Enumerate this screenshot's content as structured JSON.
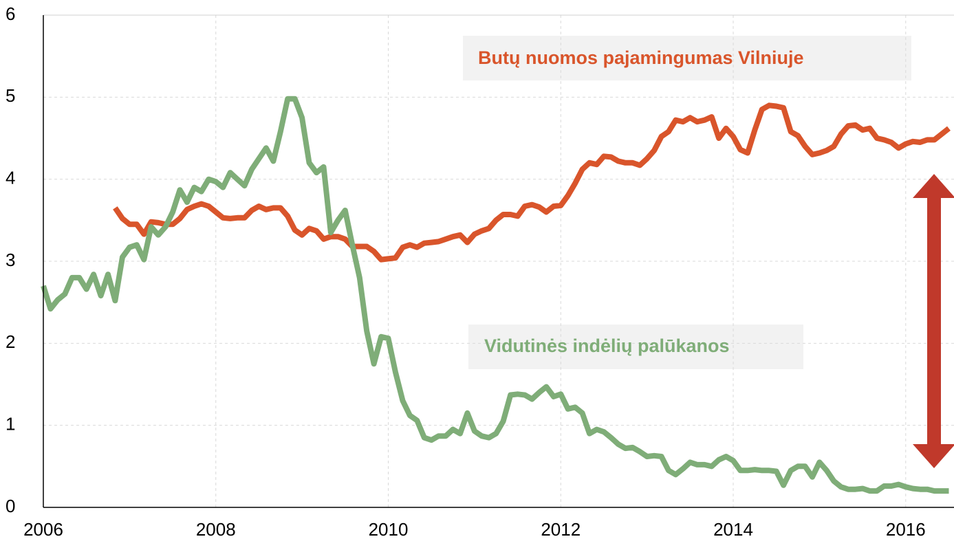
{
  "chart_data": {
    "type": "line",
    "x": [
      2006,
      2006.083,
      2006.167,
      2006.25,
      2006.333,
      2006.417,
      2006.5,
      2006.583,
      2006.667,
      2006.75,
      2006.833,
      2006.917,
      2007,
      2007.083,
      2007.167,
      2007.25,
      2007.333,
      2007.417,
      2007.5,
      2007.583,
      2007.667,
      2007.75,
      2007.833,
      2007.917,
      2008,
      2008.083,
      2008.167,
      2008.25,
      2008.333,
      2008.417,
      2008.5,
      2008.583,
      2008.667,
      2008.75,
      2008.833,
      2008.917,
      2009,
      2009.083,
      2009.167,
      2009.25,
      2009.333,
      2009.417,
      2009.5,
      2009.583,
      2009.667,
      2009.75,
      2009.833,
      2009.917,
      2010,
      2010.083,
      2010.167,
      2010.25,
      2010.333,
      2010.417,
      2010.5,
      2010.583,
      2010.667,
      2010.75,
      2010.833,
      2010.917,
      2011,
      2011.083,
      2011.167,
      2011.25,
      2011.333,
      2011.417,
      2011.5,
      2011.583,
      2011.667,
      2011.75,
      2011.833,
      2011.917,
      2012,
      2012.083,
      2012.167,
      2012.25,
      2012.333,
      2012.417,
      2012.5,
      2012.583,
      2012.667,
      2012.75,
      2012.833,
      2012.917,
      2013,
      2013.083,
      2013.167,
      2013.25,
      2013.333,
      2013.417,
      2013.5,
      2013.583,
      2013.667,
      2013.75,
      2013.833,
      2013.917,
      2014,
      2014.083,
      2014.167,
      2014.25,
      2014.333,
      2014.417,
      2014.5,
      2014.583,
      2014.667,
      2014.75,
      2014.833,
      2014.917,
      2015,
      2015.083,
      2015.167,
      2015.25,
      2015.333,
      2015.417,
      2015.5,
      2015.583,
      2015.667,
      2015.75,
      2015.833,
      2015.917,
      2016,
      2016.083,
      2016.167,
      2016.25,
      2016.333,
      2016.417,
      2016.5
    ],
    "series": [
      {
        "name": "Butų nuomos pajamingumas Vilniuje",
        "color": "#d9552b",
        "values": [
          null,
          null,
          null,
          null,
          null,
          null,
          null,
          null,
          null,
          null,
          3.65,
          3.52,
          3.45,
          3.45,
          3.33,
          3.48,
          3.47,
          3.45,
          3.45,
          3.52,
          3.63,
          3.67,
          3.7,
          3.67,
          3.6,
          3.53,
          3.52,
          3.53,
          3.53,
          3.62,
          3.67,
          3.63,
          3.65,
          3.65,
          3.55,
          3.38,
          3.32,
          3.4,
          3.37,
          3.27,
          3.3,
          3.3,
          3.27,
          3.18,
          3.18,
          3.18,
          3.12,
          3.02,
          3.03,
          3.04,
          3.17,
          3.2,
          3.17,
          3.22,
          3.23,
          3.24,
          3.27,
          3.3,
          3.32,
          3.23,
          3.33,
          3.37,
          3.4,
          3.5,
          3.57,
          3.57,
          3.55,
          3.67,
          3.69,
          3.66,
          3.6,
          3.67,
          3.68,
          3.8,
          3.95,
          4.12,
          4.2,
          4.18,
          4.28,
          4.27,
          4.22,
          4.2,
          4.2,
          4.17,
          4.25,
          4.35,
          4.52,
          4.58,
          4.72,
          4.7,
          4.75,
          4.7,
          4.72,
          4.76,
          4.5,
          4.62,
          4.52,
          4.36,
          4.32,
          4.6,
          4.85,
          4.9,
          4.89,
          4.87,
          4.58,
          4.53,
          4.4,
          4.3,
          4.32,
          4.35,
          4.4,
          4.55,
          4.65,
          4.66,
          4.6,
          4.62,
          4.5,
          4.48,
          4.45,
          4.38,
          4.43,
          4.46,
          4.45,
          4.48,
          4.48,
          4.55,
          4.62
        ]
      },
      {
        "name": "Vidutinės indėlių palūkanos",
        "color": "#7fad78",
        "values": [
          2.7,
          2.42,
          2.53,
          2.6,
          2.8,
          2.8,
          2.66,
          2.84,
          2.58,
          2.84,
          2.52,
          3.05,
          3.17,
          3.2,
          3.02,
          3.42,
          3.32,
          3.42,
          3.6,
          3.87,
          3.72,
          3.9,
          3.85,
          4.0,
          3.97,
          3.9,
          4.08,
          4.0,
          3.92,
          4.12,
          4.25,
          4.38,
          4.22,
          4.58,
          4.98,
          4.98,
          4.75,
          4.2,
          4.08,
          4.15,
          3.35,
          3.5,
          3.62,
          3.2,
          2.8,
          2.15,
          1.75,
          2.08,
          2.06,
          1.65,
          1.3,
          1.12,
          1.06,
          0.85,
          0.82,
          0.87,
          0.87,
          0.95,
          0.9,
          1.15,
          0.93,
          0.87,
          0.85,
          0.9,
          1.05,
          1.37,
          1.38,
          1.37,
          1.32,
          1.4,
          1.47,
          1.35,
          1.38,
          1.2,
          1.22,
          1.15,
          0.9,
          0.95,
          0.92,
          0.85,
          0.77,
          0.72,
          0.73,
          0.68,
          0.62,
          0.63,
          0.62,
          0.45,
          0.4,
          0.47,
          0.55,
          0.52,
          0.52,
          0.5,
          0.58,
          0.62,
          0.57,
          0.45,
          0.45,
          0.46,
          0.45,
          0.45,
          0.44,
          0.27,
          0.45,
          0.5,
          0.5,
          0.37,
          0.55,
          0.45,
          0.32,
          0.25,
          0.22,
          0.22,
          0.23,
          0.2,
          0.2,
          0.26,
          0.26,
          0.28,
          0.25,
          0.23,
          0.22,
          0.22,
          0.2,
          0.2,
          0.2
        ]
      }
    ],
    "xlim": [
      2006,
      2016.56
    ],
    "xticks": [
      2006,
      2008,
      2010,
      2012,
      2014,
      2016
    ],
    "ylim": [
      0,
      6
    ],
    "yticks": [
      0,
      1,
      2,
      3,
      4,
      5,
      6
    ],
    "grid": true
  }
}
